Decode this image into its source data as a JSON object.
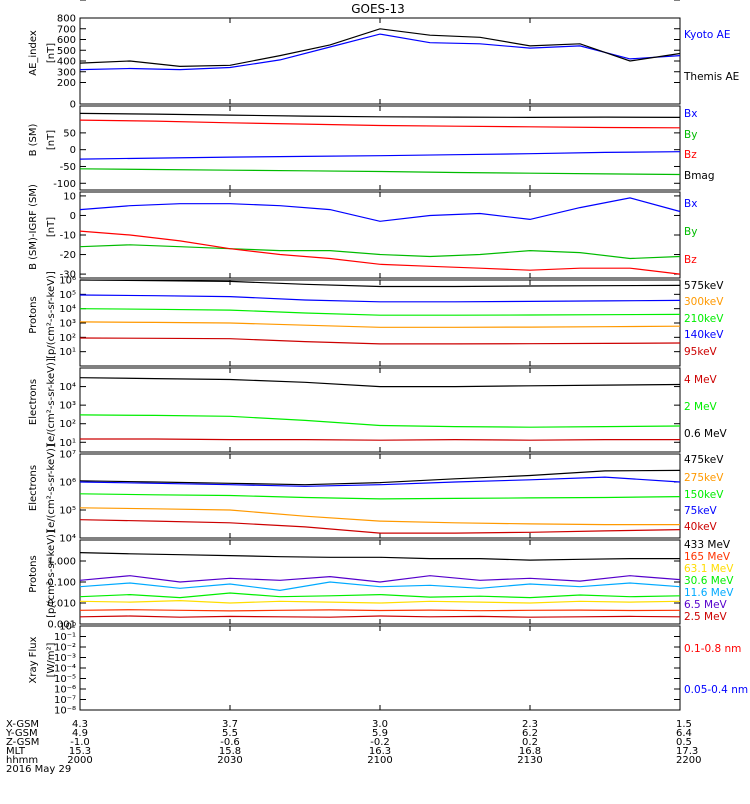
{
  "title": "GOES-13",
  "x_ticks": [
    "2000",
    "2030",
    "2100",
    "2130",
    "2200"
  ],
  "orbit_rows": {
    "labels": [
      "X-GSM",
      "Y-GSM",
      "Z-GSM",
      "MLT",
      "hhmm"
    ],
    "date": "2016 May 29",
    "values": [
      [
        "4.3",
        "3.7",
        "3.0",
        "2.3",
        "1.5"
      ],
      [
        "4.9",
        "5.5",
        "5.9",
        "6.2",
        "6.4"
      ],
      [
        "-1.0",
        "-0.6",
        "-0.2",
        "0.2",
        "0.5"
      ],
      [
        "15.3",
        "15.8",
        "16.3",
        "16.8",
        "17.3"
      ],
      [
        "2000",
        "2030",
        "2100",
        "2130",
        "2200"
      ]
    ]
  },
  "chart_data": [
    {
      "type": "line",
      "ylabel": "AE_index [nT]",
      "ylim": [
        0,
        800
      ],
      "yticks": [
        "0",
        "100",
        "200",
        "300",
        "400",
        "500",
        "600",
        "700",
        "800"
      ],
      "x": [
        "2000",
        "2010",
        "2020",
        "2030",
        "2040",
        "2050",
        "2100",
        "2110",
        "2120",
        "2130",
        "2140",
        "2150",
        "2200"
      ],
      "series": [
        {
          "name": "Kyoto AE",
          "color": "#0000ff",
          "values": [
            320,
            330,
            320,
            340,
            410,
            530,
            650,
            570,
            560,
            520,
            540,
            420,
            450
          ]
        },
        {
          "name": "Themis AE",
          "color": "#000000",
          "values": [
            380,
            400,
            350,
            360,
            450,
            550,
            700,
            640,
            620,
            540,
            560,
            400,
            470
          ]
        }
      ]
    },
    {
      "type": "line",
      "ylabel": "B (SM) [nT]",
      "ylim": [
        -120,
        130
      ],
      "yticks": [
        "-100",
        "-50",
        "0",
        "50",
        "100"
      ],
      "x": [
        "2000",
        "2015",
        "2030",
        "2045",
        "2100",
        "2115",
        "2130",
        "2145",
        "2200"
      ],
      "series": [
        {
          "name": "Bx",
          "color": "#0000ff",
          "values": [
            -28,
            -25,
            -22,
            -20,
            -18,
            -15,
            -12,
            -8,
            -6
          ]
        },
        {
          "name": "By",
          "color": "#00bb00",
          "values": [
            -57,
            -59,
            -61,
            -63,
            -65,
            -68,
            -70,
            -72,
            -74
          ]
        },
        {
          "name": "Bz",
          "color": "#ff0000",
          "values": [
            88,
            85,
            80,
            76,
            72,
            70,
            68,
            66,
            65
          ]
        },
        {
          "name": "Bmag",
          "color": "#000000",
          "values": [
            108,
            106,
            103,
            100,
            98,
            97,
            96,
            97,
            96
          ]
        }
      ]
    },
    {
      "type": "line",
      "ylabel": "B (SM)-IGRF (SM) [nT]",
      "ylim": [
        -32,
        12
      ],
      "yticks": [
        "-30",
        "-20",
        "-10",
        "0",
        "10"
      ],
      "x": [
        "2000",
        "2010",
        "2020",
        "2030",
        "2040",
        "2050",
        "2100",
        "2110",
        "2120",
        "2130",
        "2140",
        "2150",
        "2200"
      ],
      "series": [
        {
          "name": "Bx",
          "color": "#0000ff",
          "values": [
            3,
            5,
            6,
            6,
            5,
            3,
            -3,
            0,
            1,
            -2,
            4,
            9,
            2
          ]
        },
        {
          "name": "By",
          "color": "#00bb00",
          "values": [
            -16,
            -15,
            -16,
            -17,
            -18,
            -18,
            -20,
            -21,
            -20,
            -18,
            -19,
            -22,
            -21
          ]
        },
        {
          "name": "Bz",
          "color": "#ff0000",
          "values": [
            -8,
            -10,
            -13,
            -17,
            -20,
            -22,
            -25,
            -26,
            -27,
            -28,
            -27,
            -27,
            -30
          ]
        }
      ]
    },
    {
      "type": "line",
      "ylabel": "Protons [p/(cm²-s-sr-keV)]",
      "ylog": true,
      "ylim": [
        1,
        1000000
      ],
      "yticks": [
        "10¹",
        "10²",
        "10³",
        "10⁴",
        "10⁵",
        "10⁶"
      ],
      "x": [
        "2000",
        "2015",
        "2030",
        "2045",
        "2100",
        "2115",
        "2130",
        "2145",
        "2200"
      ],
      "series": [
        {
          "name": "575keV",
          "color": "#000000",
          "values": [
            1000000,
            900000,
            800000,
            500000,
            350000,
            350000,
            380000,
            400000,
            420000
          ]
        },
        {
          "name": "300keV",
          "color": "#ff9900",
          "values": [
            1200,
            1100,
            1000,
            700,
            500,
            500,
            520,
            550,
            600
          ]
        },
        {
          "name": "210keV",
          "color": "#00ee00",
          "values": [
            10000,
            9000,
            8000,
            5000,
            3500,
            3500,
            3600,
            3800,
            4000
          ]
        },
        {
          "name": "140keV",
          "color": "#0000ff",
          "values": [
            90000,
            80000,
            70000,
            40000,
            30000,
            30000,
            32000,
            35000,
            38000
          ]
        },
        {
          "name": "95keV",
          "color": "#cc0000",
          "values": [
            90,
            85,
            80,
            50,
            35,
            35,
            36,
            38,
            40
          ]
        }
      ]
    },
    {
      "type": "line",
      "ylabel": "Electrons [e/(cm²-s-sr-keV)]",
      "ylog": true,
      "ylim": [
        3,
        100000
      ],
      "yticks": [
        "10¹",
        "10²",
        "10³",
        "10⁴"
      ],
      "x": [
        "2000",
        "2015",
        "2030",
        "2045",
        "2100",
        "2115",
        "2130",
        "2145",
        "2200"
      ],
      "series": [
        {
          "name": "4 MeV",
          "color": "#cc0000",
          "values": [
            15,
            15,
            14,
            14,
            13,
            14,
            13,
            14,
            14
          ]
        },
        {
          "name": "2 MeV",
          "color": "#00ee00",
          "values": [
            300,
            280,
            250,
            150,
            80,
            70,
            65,
            70,
            75
          ]
        },
        {
          "name": "0.6 MeV",
          "color": "#000000",
          "values": [
            30000,
            27000,
            24000,
            17000,
            10000,
            10000,
            11000,
            12000,
            13000
          ]
        }
      ]
    },
    {
      "type": "line",
      "ylabel": "Electrons [e/(cm²-s-sr-keV)]",
      "ylog": true,
      "ylim": [
        10000,
        10000000
      ],
      "yticks": [
        "10⁴",
        "10⁵",
        "10⁶",
        "10⁷"
      ],
      "x": [
        "2000",
        "2015",
        "2030",
        "2045",
        "2100",
        "2115",
        "2130",
        "2145",
        "2200"
      ],
      "series": [
        {
          "name": "475keV",
          "color": "#000000",
          "values": [
            1100000,
            1000000,
            900000,
            800000,
            950000,
            1300000,
            1700000,
            2500000,
            2600000
          ]
        },
        {
          "name": "275keV",
          "color": "#ff9900",
          "values": [
            120000,
            110000,
            100000,
            60000,
            40000,
            35000,
            32000,
            30000,
            30000
          ]
        },
        {
          "name": "150keV",
          "color": "#00ee00",
          "values": [
            380000,
            350000,
            330000,
            280000,
            250000,
            260000,
            270000,
            280000,
            300000
          ]
        },
        {
          "name": "75keV",
          "color": "#0000ff",
          "values": [
            1000000,
            900000,
            800000,
            700000,
            800000,
            1000000,
            1200000,
            1500000,
            1000000
          ]
        },
        {
          "name": "40keV",
          "color": "#cc0000",
          "values": [
            45000,
            40000,
            35000,
            25000,
            15000,
            15000,
            16000,
            18000,
            20000
          ]
        }
      ]
    },
    {
      "type": "line",
      "ylabel": "Protons [p/(cm²-s-sr-keV)]",
      "ylog": true,
      "ylim": [
        0.001,
        10
      ],
      "yticks": [
        "0.001",
        "0.010",
        "0.100",
        "1.000",
        "10.000"
      ],
      "x": [
        "2000",
        "2010",
        "2020",
        "2030",
        "2040",
        "2050",
        "2100",
        "2110",
        "2120",
        "2130",
        "2140",
        "2150",
        "2200"
      ],
      "series": [
        {
          "name": "433 MeV",
          "color": "#000000",
          "values": [
            2.5,
            2.2,
            2.0,
            1.8,
            1.6,
            1.5,
            1.5,
            1.3,
            1.3,
            1.1,
            1.2,
            1.3,
            1.3
          ]
        },
        {
          "name": "165 MeV",
          "color": "#ff3300",
          "values": [
            0.0045,
            0.0048,
            0.0045,
            0.0042,
            0.0045,
            0.0047,
            0.0044,
            0.0046,
            0.0043,
            0.0045,
            0.0046,
            0.0044,
            0.0045
          ]
        },
        {
          "name": "63.1 MeV",
          "color": "#ffdd00",
          "values": [
            0.012,
            0.011,
            0.013,
            0.01,
            0.012,
            0.011,
            0.01,
            0.012,
            0.011,
            0.01,
            0.012,
            0.011,
            0.012
          ]
        },
        {
          "name": "30.6 MeV",
          "color": "#00ee00",
          "values": [
            0.02,
            0.025,
            0.018,
            0.03,
            0.02,
            0.022,
            0.025,
            0.019,
            0.021,
            0.018,
            0.024,
            0.02,
            0.022
          ]
        },
        {
          "name": "11.6 MeV",
          "color": "#00aaff",
          "values": [
            0.06,
            0.09,
            0.05,
            0.08,
            0.04,
            0.1,
            0.06,
            0.07,
            0.05,
            0.08,
            0.06,
            0.09,
            0.06
          ]
        },
        {
          "name": "6.5 MeV",
          "color": "#5500cc",
          "values": [
            0.12,
            0.2,
            0.1,
            0.15,
            0.12,
            0.18,
            0.1,
            0.2,
            0.12,
            0.15,
            0.11,
            0.2,
            0.13
          ]
        },
        {
          "name": "2.5 MeV",
          "color": "#cc0000",
          "values": [
            0.0022,
            0.0024,
            0.0021,
            0.0023,
            0.0022,
            0.0021,
            0.0024,
            0.0022,
            0.0023,
            0.0021,
            0.0022,
            0.0023,
            0.0022
          ]
        }
      ]
    },
    {
      "type": "line",
      "ylabel": "Xray Flux [W/m²]",
      "ylog": true,
      "ylim": [
        1e-08,
        1
      ],
      "yticks": [
        "10⁻⁸",
        "10⁻⁷",
        "10⁻⁶",
        "10⁻⁵",
        "10⁻⁴",
        "10⁻³",
        "10⁻²",
        "10⁻¹",
        "10⁰"
      ],
      "series": [
        {
          "name": "0.1-0.8 nm",
          "color": "#ff0000",
          "values": []
        },
        {
          "name": "0.05-0.4 nm",
          "color": "#0000ff",
          "values": []
        }
      ]
    }
  ]
}
